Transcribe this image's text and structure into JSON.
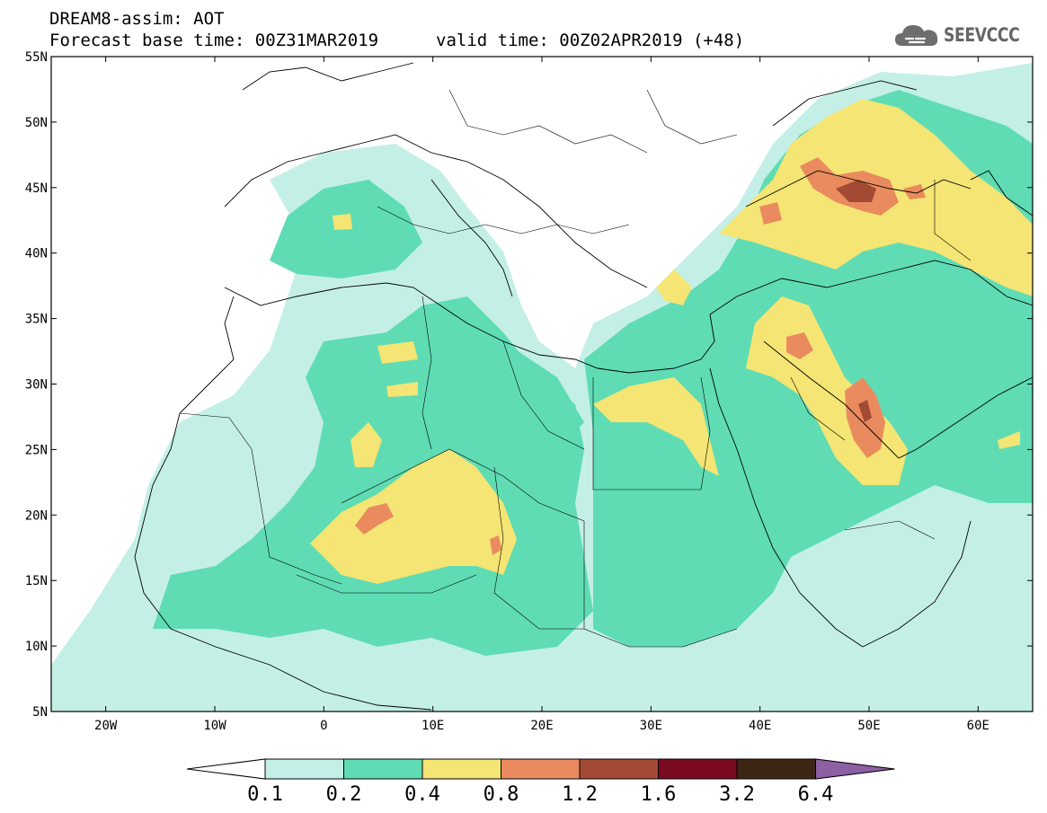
{
  "header": {
    "title": "DREAM8-assim: AOT",
    "base_time": "Forecast base time: 00Z31MAR2019",
    "valid_time": "valid time: 00Z02APR2019 (+48)",
    "logo_text": "SEEVCCC"
  },
  "map": {
    "variable": "AOT",
    "projection": "lat-lon",
    "lon_range": [
      -25,
      65
    ],
    "lat_range": [
      5,
      55
    ],
    "lat_ticks": [
      "5N",
      "10N",
      "15N",
      "20N",
      "25N",
      "30N",
      "35N",
      "40N",
      "45N",
      "50N",
      "55N"
    ],
    "lon_ticks": [
      "20W",
      "10W",
      "0",
      "10E",
      "20E",
      "30E",
      "40E",
      "50E",
      "60E"
    ],
    "background_color": "#ffffff",
    "coastline_color": "#000000"
  },
  "colorbar": {
    "labels": [
      "0.1",
      "0.2",
      "0.4",
      "0.8",
      "1.2",
      "1.6",
      "3.2",
      "6.4"
    ],
    "colors": [
      "#ffffff",
      "#c4efe7",
      "#5fdcb4",
      "#f4e574",
      "#e98b5e",
      "#a34a35",
      "#7a0a1f",
      "#3d2614",
      "#8d5fa3"
    ]
  }
}
